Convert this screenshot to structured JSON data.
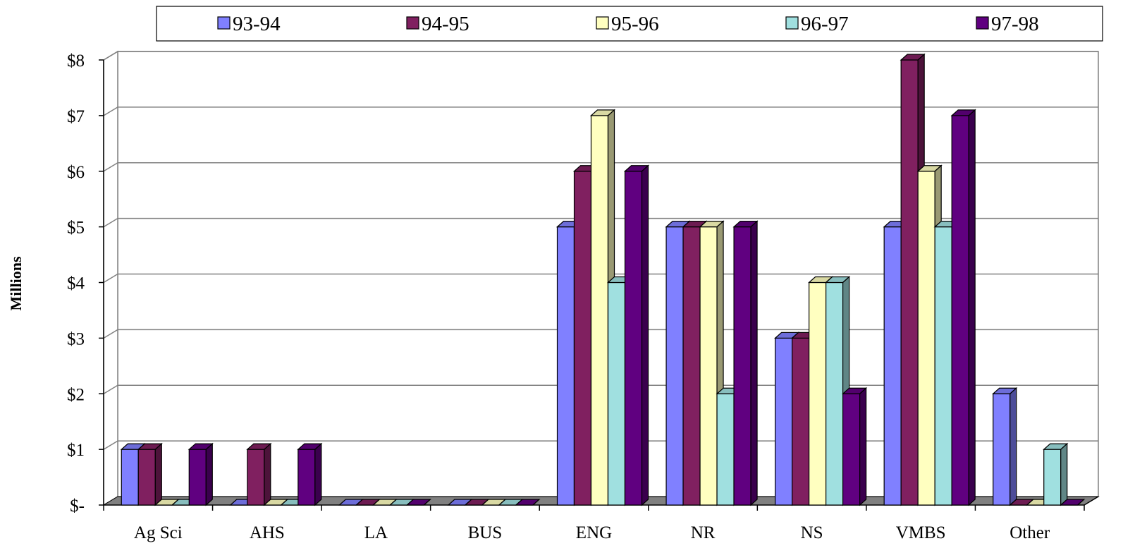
{
  "chart_data": {
    "type": "bar",
    "categories": [
      "Ag Sci",
      "AHS",
      "LA",
      "BUS",
      "ENG",
      "NR",
      "NS",
      "VMBS",
      "Other"
    ],
    "series": [
      {
        "name": "93-94",
        "color": "#8080FF",
        "values": [
          1,
          0,
          0,
          0,
          5,
          5,
          3,
          5,
          2
        ]
      },
      {
        "name": "94-95",
        "color": "#802060",
        "values": [
          1,
          1,
          0,
          0,
          6,
          5,
          3,
          8,
          0
        ]
      },
      {
        "name": "95-96",
        "color": "#FFFFC0",
        "values": [
          0,
          0,
          0,
          0,
          7,
          5,
          4,
          6,
          0
        ]
      },
      {
        "name": "96-97",
        "color": "#A0E0E0",
        "values": [
          0,
          0,
          0,
          0,
          4,
          2,
          4,
          5,
          1
        ]
      },
      {
        "name": "97-98",
        "color": "#600080",
        "values": [
          1,
          1,
          0,
          0,
          6,
          5,
          2,
          7,
          0
        ]
      }
    ],
    "ylabel": "Millions",
    "xlabel": "",
    "ytick_labels": [
      "$-",
      "$1",
      "$2",
      "$3",
      "$4",
      "$5",
      "$6",
      "$7",
      "$8"
    ],
    "ylim": [
      0,
      8
    ],
    "grid": true,
    "legend_position": "top",
    "style": "3d-clustered-column"
  }
}
